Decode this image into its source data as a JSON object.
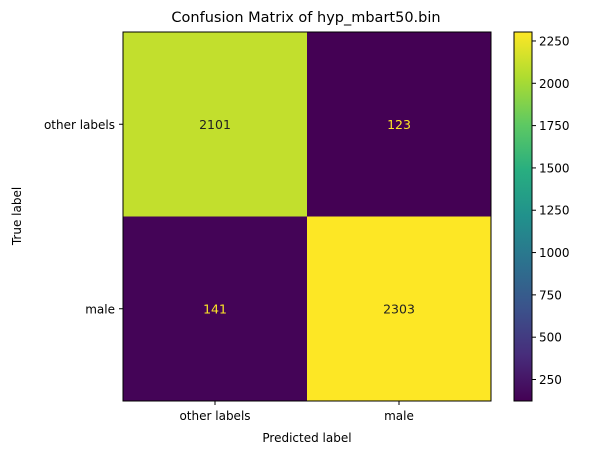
{
  "chart_data": {
    "type": "heatmap",
    "title": "Confusion Matrix of hyp_mbart50.bin",
    "xlabel": "Predicted label",
    "ylabel": "True label",
    "x_categories": [
      "other labels",
      "male"
    ],
    "y_categories": [
      "other labels",
      "male"
    ],
    "matrix": [
      [
        2101,
        123
      ],
      [
        141,
        2303
      ]
    ],
    "colormap": "viridis",
    "colorbar": {
      "range": [
        123,
        2303
      ],
      "ticks": [
        250,
        500,
        750,
        1000,
        1250,
        1500,
        1750,
        2000,
        2250
      ]
    },
    "text_colors": {
      "on_dark": "#fde725",
      "on_light": "#222222"
    },
    "grid": false
  }
}
